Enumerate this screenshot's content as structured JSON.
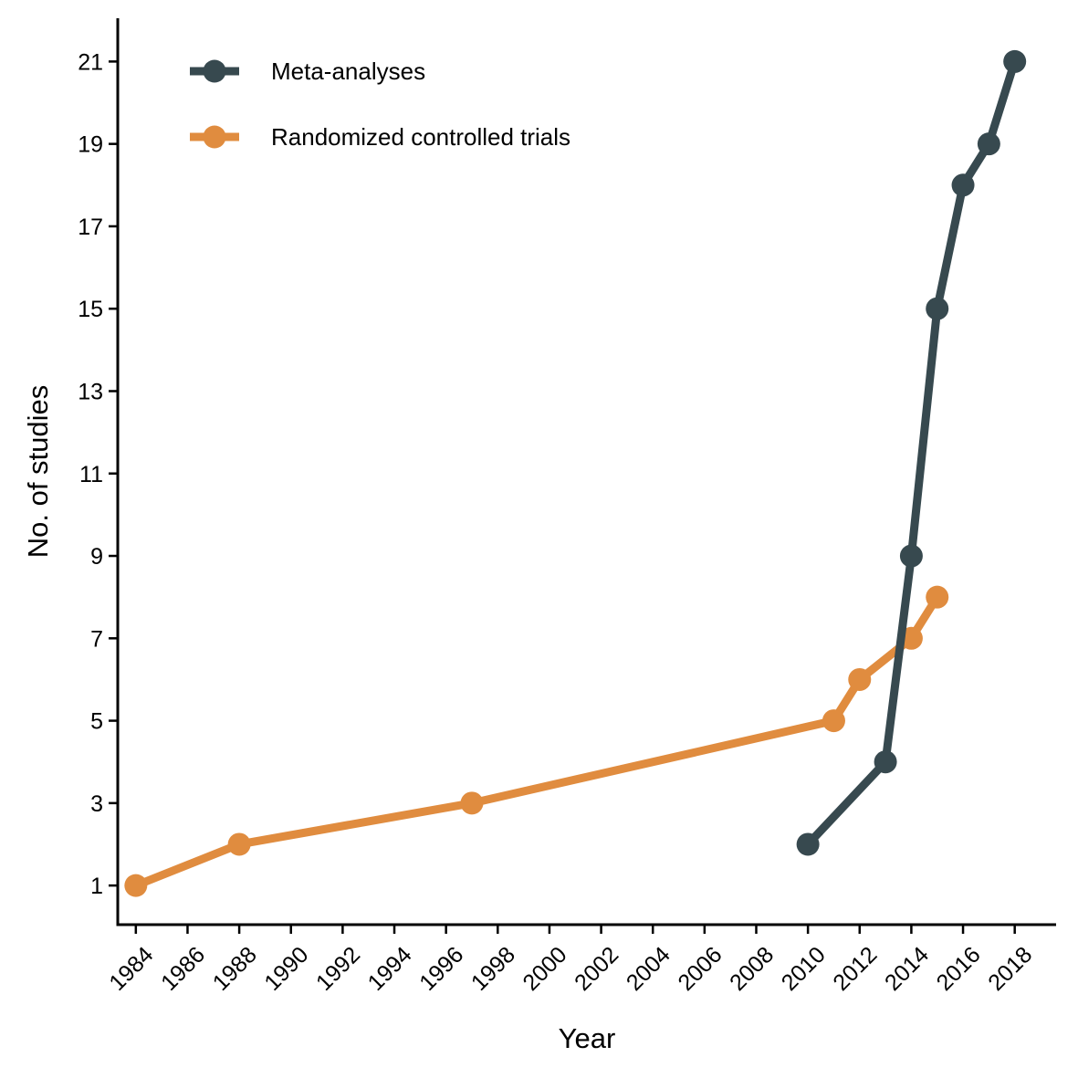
{
  "chart_data": {
    "type": "line",
    "title": "",
    "xlabel": "Year",
    "ylabel": "No. of studies",
    "xlim": [
      1983.3,
      2019.6
    ],
    "ylim": [
      0.05,
      22.05
    ],
    "x_ticks": [
      1984,
      1986,
      1988,
      1990,
      1992,
      1994,
      1996,
      1998,
      2000,
      2002,
      2004,
      2006,
      2008,
      2010,
      2012,
      2014,
      2016,
      2018
    ],
    "y_ticks": [
      1,
      3,
      5,
      7,
      9,
      11,
      13,
      15,
      17,
      19,
      21
    ],
    "grid": false,
    "legend_position": "top-left",
    "series": [
      {
        "name": "Meta-analyses",
        "color": "#37494f",
        "x": [
          2010,
          2013,
          2014,
          2015,
          2016,
          2017,
          2018
        ],
        "y": [
          2,
          4,
          9,
          15,
          18,
          19,
          21
        ]
      },
      {
        "name": "Randomized controlled trials",
        "color": "#e08c3f",
        "x": [
          1984,
          1988,
          1997,
          2011,
          2012,
          2014,
          2015
        ],
        "y": [
          1,
          2,
          3,
          5,
          6,
          7,
          8
        ]
      }
    ]
  }
}
